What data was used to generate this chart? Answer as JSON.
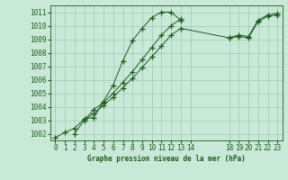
{
  "bg_color": "#c8e8d8",
  "grid_color": "#a0c8b8",
  "line_color": "#1a5c1a",
  "marker_color": "#1a5c1a",
  "title": "Graphe pression niveau de la mer (hPa)",
  "title_color": "#1a5c1a",
  "tick_color": "#1a5c1a",
  "xlim": [
    -0.5,
    23.5
  ],
  "ylim": [
    1001.5,
    1011.5
  ],
  "yticks": [
    1002,
    1003,
    1004,
    1005,
    1006,
    1007,
    1008,
    1009,
    1010,
    1011
  ],
  "xtick_positions": [
    0,
    1,
    2,
    3,
    4,
    5,
    6,
    7,
    8,
    9,
    10,
    11,
    12,
    13,
    14,
    18,
    19,
    20,
    21,
    22,
    23
  ],
  "xtick_labels": [
    "0",
    "1",
    "2",
    "3",
    "4",
    "5",
    "6",
    "7",
    "8",
    "9",
    "10",
    "11",
    "12",
    "13",
    "14",
    "18",
    "19",
    "20",
    "21",
    "22",
    "23"
  ],
  "series_x": [
    [
      0,
      1,
      2,
      3,
      4,
      5,
      6,
      7,
      8,
      9,
      10,
      11,
      12,
      13
    ],
    [
      2,
      3,
      4,
      5,
      6,
      7,
      8,
      9,
      10,
      11,
      12,
      13
    ],
    [
      3,
      4,
      5,
      6,
      7,
      8,
      9,
      10,
      11,
      12,
      13,
      18,
      19,
      20,
      21,
      22,
      23
    ],
    [
      18,
      19,
      20,
      21,
      22,
      23
    ]
  ],
  "series_y": [
    [
      1001.7,
      1002.1,
      1002.4,
      1003.1,
      1003.2,
      1004.4,
      1005.6,
      1007.4,
      1008.9,
      1009.8,
      1010.6,
      1011.0,
      1011.0,
      1010.4
    ],
    [
      1002.0,
      1003.0,
      1003.8,
      1004.3,
      1005.0,
      1005.8,
      1006.6,
      1007.5,
      1008.4,
      1009.3,
      1010.0,
      1010.5
    ],
    [
      1003.0,
      1003.5,
      1004.1,
      1004.7,
      1005.4,
      1006.1,
      1006.9,
      1007.7,
      1008.5,
      1009.3,
      1009.8,
      1009.1,
      1009.3,
      1009.2,
      1010.4,
      1010.8,
      1010.9
    ],
    [
      1009.1,
      1009.2,
      1009.1,
      1010.3,
      1010.7,
      1010.8
    ]
  ]
}
